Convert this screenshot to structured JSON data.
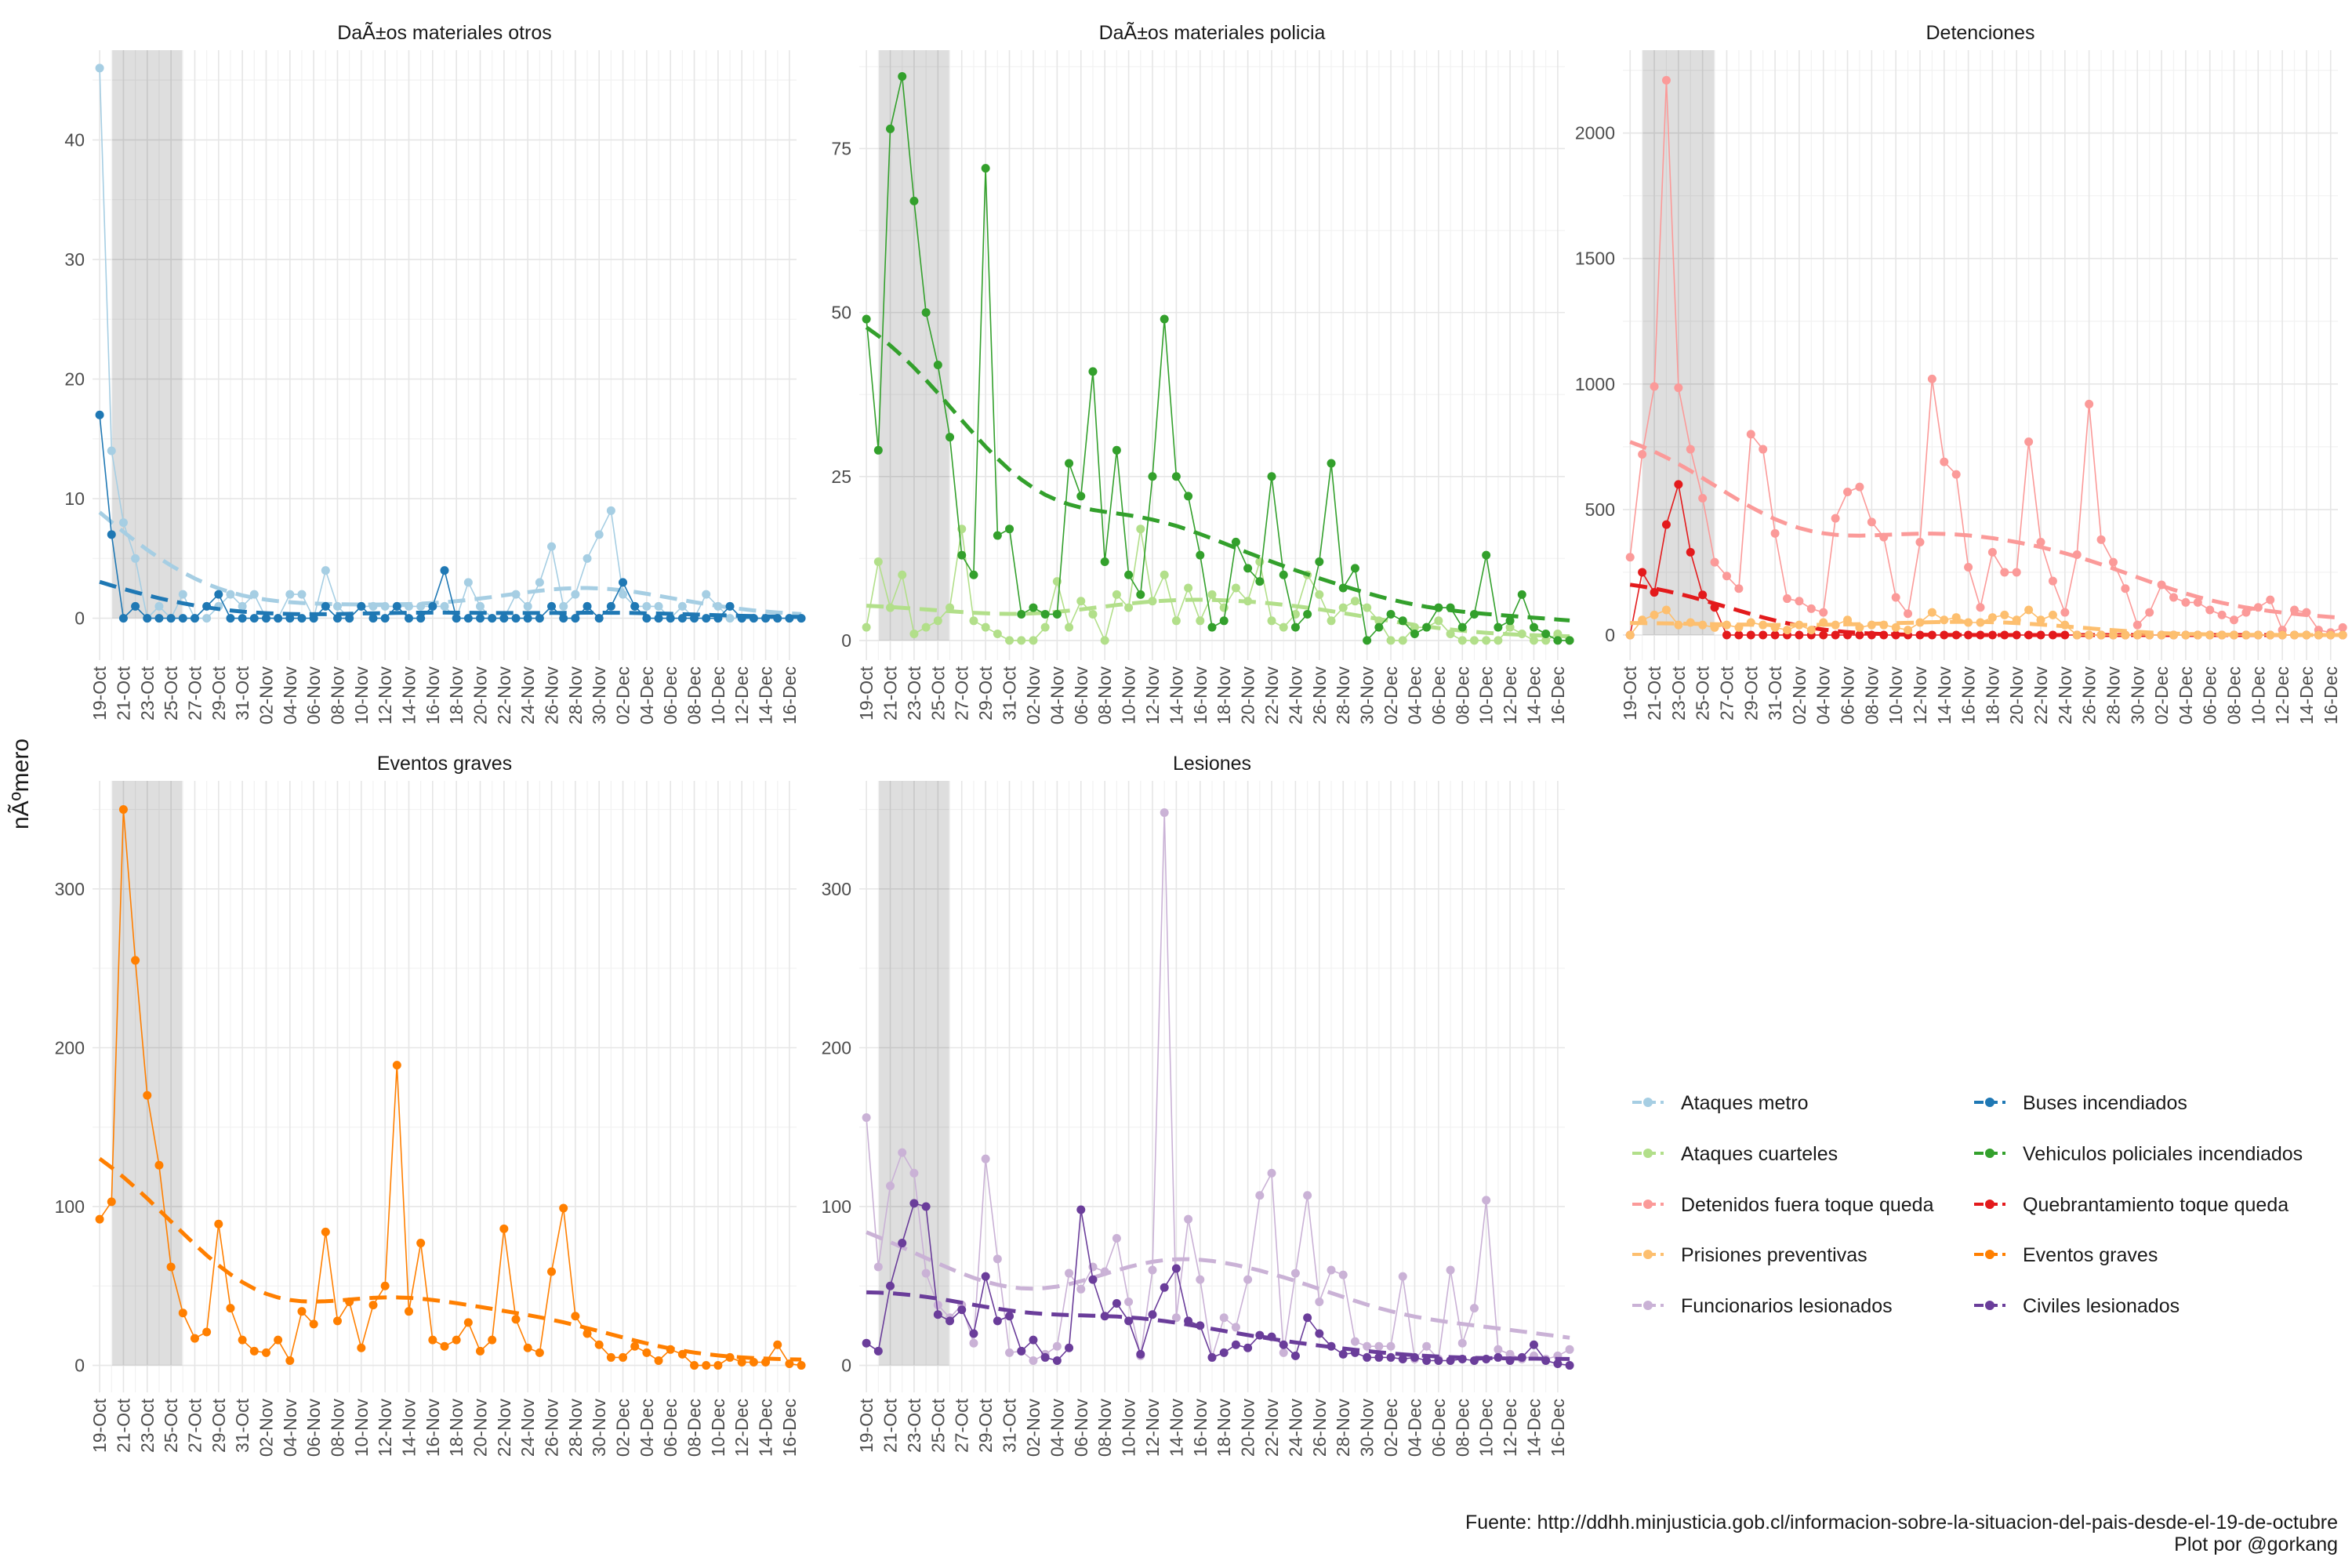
{
  "ylabel": "nÃºmero",
  "caption": [
    "Fuente: http://ddhh.minjusticia.gob.cl/informacion-sobre-la-situacion-del-pais-desde-el-19-de-octubre",
    "Plot por @gorkang"
  ],
  "shaded_period": [
    "19-Oct",
    "27-Oct"
  ],
  "series_colors": {
    "Ataques metro": "#a6cee3",
    "Buses incendiados": "#1f78b4",
    "Ataques cuarteles": "#b2df8a",
    "Vehiculos policiales incendiados": "#33a02c",
    "Detenidos fuera toque queda": "#fb9a99",
    "Quebrantamiento toque queda": "#e31a1c",
    "Prisiones preventivas": "#fdbf6f",
    "Eventos graves": "#ff7f00",
    "Funcionarios lesionados": "#cab2d6",
    "Civiles lesionados": "#6a3d9a"
  },
  "legend": [
    "Ataques metro",
    "Buses incendiados",
    "Ataques cuarteles",
    "Vehiculos policiales incendiados",
    "Detenidos fuera toque queda",
    "Quebrantamiento toque queda",
    "Prisiones preventivas",
    "Eventos graves",
    "Funcionarios lesionados",
    "Civiles lesionados"
  ],
  "chart_data": [
    {
      "type": "line",
      "title": "DaÃ±os materiales otros",
      "x_start": "19-Oct",
      "x_end": "16-Dec",
      "x_ticks": [
        "19-Oct",
        "21-Oct",
        "23-Oct",
        "25-Oct",
        "27-Oct",
        "29-Oct",
        "31-Oct",
        "02-Nov",
        "04-Nov",
        "06-Nov",
        "08-Nov",
        "10-Nov",
        "12-Nov",
        "14-Nov",
        "16-Nov",
        "18-Nov",
        "20-Nov",
        "22-Nov",
        "24-Nov",
        "26-Nov",
        "28-Nov",
        "30-Nov",
        "02-Dec",
        "04-Dec",
        "06-Dec",
        "08-Dec",
        "10-Dec",
        "12-Dec",
        "14-Dec",
        "16-Dec"
      ],
      "ylim": [
        -3.5,
        47.5
      ],
      "y_ticks": [
        0,
        10,
        20,
        30,
        40
      ],
      "series": [
        {
          "name": "Ataques metro",
          "values": [
            46,
            14,
            8,
            5,
            0,
            1,
            0,
            2,
            0,
            0,
            1,
            2,
            1,
            2,
            0,
            0,
            2,
            2,
            0,
            4,
            1,
            0,
            1,
            1,
            1,
            1,
            1,
            1,
            1,
            1,
            0,
            3,
            1,
            0,
            0,
            2,
            1,
            3,
            6,
            1,
            2,
            5,
            7,
            9,
            2,
            1,
            1,
            1,
            0,
            1,
            0,
            2,
            1,
            0,
            0,
            0,
            0,
            0,
            0,
            0
          ]
        },
        {
          "name": "Buses incendiados",
          "values": [
            17,
            7,
            0,
            1,
            0,
            0,
            0,
            0,
            0,
            1,
            2,
            0,
            0,
            0,
            0,
            0,
            0,
            0,
            0,
            1,
            0,
            0,
            1,
            0,
            0,
            1,
            0,
            0,
            1,
            4,
            0,
            0,
            0,
            0,
            0,
            0,
            0,
            0,
            1,
            0,
            0,
            1,
            0,
            1,
            3,
            1,
            0,
            0,
            0,
            0,
            0,
            0,
            0,
            1,
            0,
            0,
            0,
            0,
            0,
            0
          ]
        }
      ]
    },
    {
      "type": "line",
      "title": "DaÃ±os materiales policia",
      "x_start": "19-Oct",
      "x_end": "16-Dec",
      "x_ticks": [
        "19-Oct",
        "21-Oct",
        "23-Oct",
        "25-Oct",
        "27-Oct",
        "29-Oct",
        "31-Oct",
        "02-Nov",
        "04-Nov",
        "06-Nov",
        "08-Nov",
        "10-Nov",
        "12-Nov",
        "14-Nov",
        "16-Nov",
        "18-Nov",
        "20-Nov",
        "22-Nov",
        "24-Nov",
        "26-Nov",
        "28-Nov",
        "30-Nov",
        "02-Dec",
        "04-Dec",
        "06-Dec",
        "08-Dec",
        "10-Dec",
        "12-Dec",
        "14-Dec",
        "16-Dec"
      ],
      "ylim": [
        -3,
        90
      ],
      "y_ticks": [
        0,
        25,
        50,
        75
      ],
      "series": [
        {
          "name": "Ataques cuarteles",
          "values": [
            2,
            12,
            5,
            10,
            1,
            2,
            3,
            5,
            17,
            3,
            2,
            1,
            0,
            0,
            0,
            2,
            9,
            2,
            6,
            4,
            0,
            7,
            5,
            17,
            6,
            10,
            3,
            8,
            3,
            7,
            5,
            8,
            6,
            12,
            3,
            2,
            4,
            10,
            7,
            3,
            5,
            6,
            5,
            3,
            0,
            0,
            2,
            2,
            3,
            1,
            0,
            0,
            0,
            0,
            2,
            1,
            0,
            0,
            1,
            0
          ]
        },
        {
          "name": "Vehiculos policiales incendiados",
          "values": [
            49,
            29,
            78,
            86,
            67,
            50,
            42,
            31,
            13,
            10,
            72,
            16,
            17,
            4,
            5,
            4,
            4,
            27,
            22,
            41,
            12,
            29,
            10,
            7,
            25,
            49,
            25,
            22,
            13,
            2,
            3,
            15,
            11,
            9,
            25,
            10,
            2,
            4,
            12,
            27,
            8,
            11,
            0,
            2,
            4,
            3,
            1,
            2,
            5,
            5,
            2,
            4,
            13,
            2,
            3,
            7,
            2,
            1,
            0,
            0
          ]
        }
      ]
    },
    {
      "type": "line",
      "title": "Detenciones",
      "x_start": "19-Oct",
      "x_end": "16-Dec",
      "x_ticks": [
        "19-Oct",
        "21-Oct",
        "23-Oct",
        "25-Oct",
        "27-Oct",
        "29-Oct",
        "31-Oct",
        "02-Nov",
        "04-Nov",
        "06-Nov",
        "08-Nov",
        "10-Nov",
        "12-Nov",
        "14-Nov",
        "16-Nov",
        "18-Nov",
        "20-Nov",
        "22-Nov",
        "24-Nov",
        "26-Nov",
        "28-Nov",
        "30-Nov",
        "02-Dec",
        "04-Dec",
        "06-Dec",
        "08-Dec",
        "10-Dec",
        "12-Dec",
        "14-Dec",
        "16-Dec"
      ],
      "ylim": [
        -100,
        2330
      ],
      "y_ticks": [
        0,
        500,
        1000,
        1500,
        2000
      ],
      "series": [
        {
          "name": "Detenidos fuera toque queda",
          "values": [
            310,
            720,
            990,
            2210,
            985,
            740,
            545,
            290,
            235,
            185,
            800,
            740,
            405,
            145,
            135,
            105,
            90,
            465,
            570,
            590,
            450,
            390,
            150,
            85,
            370,
            1020,
            690,
            640,
            270,
            110,
            330,
            250,
            250,
            770,
            370,
            215,
            90,
            320,
            920,
            380,
            290,
            185,
            40,
            90,
            200,
            150,
            130,
            130,
            100,
            80,
            60,
            90,
            110,
            140,
            20,
            100,
            90,
            20,
            10,
            30
          ]
        },
        {
          "name": "Quebrantamiento toque queda",
          "values": [
            0,
            250,
            170,
            440,
            600,
            330,
            160,
            110,
            0,
            0,
            0,
            0,
            0,
            0,
            0,
            0,
            0,
            0,
            0,
            0,
            0,
            0,
            0,
            0,
            0,
            0,
            0,
            0,
            0,
            0,
            0,
            0,
            0,
            0,
            0,
            0,
            0,
            0,
            0,
            0,
            0,
            0,
            0,
            0,
            0,
            0,
            0,
            0,
            0,
            0,
            0,
            0,
            0,
            0,
            0,
            0,
            0,
            0,
            0,
            0
          ]
        },
        {
          "name": "Prisiones preventivas",
          "values": [
            0,
            60,
            80,
            100,
            40,
            50,
            40,
            30,
            40,
            30,
            50,
            40,
            30,
            20,
            40,
            20,
            50,
            40,
            60,
            30,
            40,
            40,
            30,
            20,
            50,
            90,
            60,
            70,
            50,
            50,
            70,
            80,
            60,
            100,
            60,
            80,
            40,
            0,
            0,
            0,
            0,
            0,
            0,
            0,
            0,
            0,
            0,
            0,
            0,
            0,
            0,
            0,
            0,
            0,
            0,
            0,
            0,
            0,
            0,
            0
          ]
        }
      ]
    },
    {
      "type": "line",
      "title": "Eventos graves",
      "x_start": "19-Oct",
      "x_end": "16-Dec",
      "x_ticks": [
        "19-Oct",
        "21-Oct",
        "23-Oct",
        "25-Oct",
        "27-Oct",
        "29-Oct",
        "31-Oct",
        "02-Nov",
        "04-Nov",
        "06-Nov",
        "08-Nov",
        "10-Nov",
        "12-Nov",
        "14-Nov",
        "16-Nov",
        "18-Nov",
        "20-Nov",
        "22-Nov",
        "24-Nov",
        "26-Nov",
        "28-Nov",
        "30-Nov",
        "02-Dec",
        "04-Dec",
        "06-Dec",
        "08-Dec",
        "10-Dec",
        "12-Dec",
        "14-Dec",
        "16-Dec"
      ],
      "ylim": [
        -17,
        368
      ],
      "y_ticks": [
        0,
        100,
        200,
        300
      ],
      "series": [
        {
          "name": "Eventos graves",
          "values": [
            92,
            103,
            350,
            255,
            170,
            126,
            62,
            33,
            17,
            21,
            89,
            36,
            16,
            9,
            8,
            16,
            3,
            34,
            26,
            84,
            28,
            40,
            11,
            38,
            50,
            189,
            34,
            77,
            16,
            12,
            16,
            27,
            9,
            16,
            86,
            29,
            11,
            8,
            59,
            99,
            31,
            20,
            13,
            5,
            5,
            12,
            8,
            3,
            10,
            7,
            0,
            0,
            0,
            5,
            2,
            2,
            2,
            13,
            1,
            0
          ]
        }
      ]
    },
    {
      "type": "line",
      "title": "Lesiones",
      "x_start": "19-Oct",
      "x_end": "16-Dec",
      "x_ticks": [
        "19-Oct",
        "21-Oct",
        "23-Oct",
        "25-Oct",
        "27-Oct",
        "29-Oct",
        "31-Oct",
        "02-Nov",
        "04-Nov",
        "06-Nov",
        "08-Nov",
        "10-Nov",
        "12-Nov",
        "14-Nov",
        "16-Nov",
        "18-Nov",
        "20-Nov",
        "22-Nov",
        "24-Nov",
        "26-Nov",
        "28-Nov",
        "30-Nov",
        "02-Dec",
        "04-Dec",
        "06-Dec",
        "08-Dec",
        "10-Dec",
        "12-Dec",
        "14-Dec",
        "16-Dec"
      ],
      "ylim": [
        -17,
        368
      ],
      "y_ticks": [
        0,
        100,
        200,
        300
      ],
      "series": [
        {
          "name": "Funcionarios lesionados",
          "values": [
            156,
            62,
            113,
            134,
            121,
            58,
            38,
            30,
            38,
            14,
            130,
            67,
            8,
            9,
            3,
            7,
            12,
            58,
            48,
            62,
            59,
            80,
            40,
            6,
            60,
            348,
            30,
            92,
            54,
            5,
            30,
            24,
            54,
            107,
            121,
            8,
            58,
            107,
            40,
            60,
            57,
            15,
            12,
            12,
            12,
            56,
            4,
            12,
            4,
            60,
            14,
            36,
            104,
            10,
            7,
            4,
            6,
            4,
            6,
            10
          ]
        },
        {
          "name": "Civiles lesionados",
          "values": [
            14,
            9,
            50,
            77,
            102,
            100,
            32,
            28,
            35,
            20,
            56,
            28,
            31,
            9,
            16,
            5,
            3,
            11,
            98,
            54,
            31,
            39,
            28,
            7,
            32,
            49,
            61,
            28,
            25,
            5,
            8,
            13,
            11,
            19,
            18,
            13,
            6,
            30,
            20,
            12,
            7,
            8,
            5,
            5,
            5,
            4,
            5,
            3,
            3,
            3,
            4,
            3,
            4,
            5,
            3,
            5,
            13,
            3,
            1,
            0
          ]
        }
      ]
    }
  ]
}
